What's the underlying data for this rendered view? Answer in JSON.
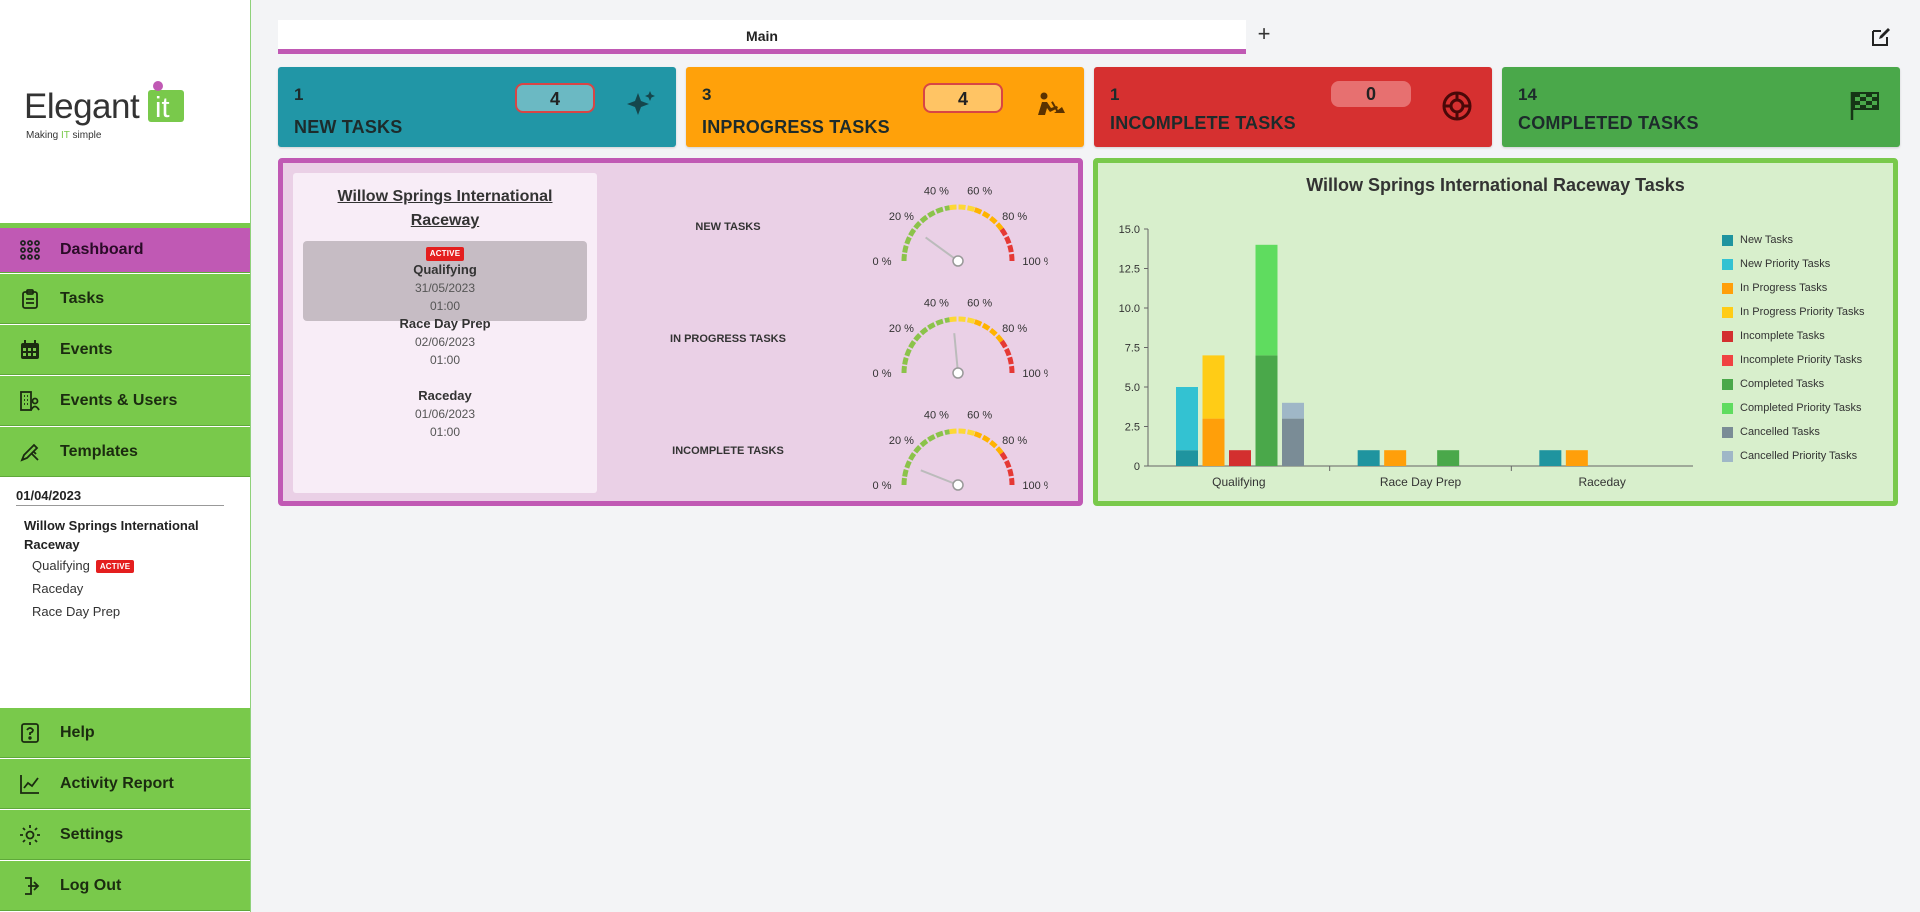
{
  "brand": {
    "logo_word": "Elegant",
    "logo_it": "it",
    "tagline_pre": "Making ",
    "tagline_it": "IT",
    "tagline_post": " simple"
  },
  "sidebar": {
    "nav_top": [
      {
        "label": "Dashboard",
        "icon": "grid-icon",
        "active": true
      },
      {
        "label": "Tasks",
        "icon": "clipboard-icon"
      },
      {
        "label": "Events",
        "icon": "calendar-icon"
      },
      {
        "label": "Events & Users",
        "icon": "building-users-icon"
      },
      {
        "label": "Templates",
        "icon": "pencil-ruler-icon"
      }
    ],
    "nav_bottom": [
      {
        "label": "Help",
        "icon": "question-icon"
      },
      {
        "label": "Activity Report",
        "icon": "chart-line-icon"
      },
      {
        "label": "Settings",
        "icon": "gear-icon"
      },
      {
        "label": "Log Out",
        "icon": "logout-icon"
      }
    ],
    "event_tree": {
      "date": "01/04/2023",
      "event_name": "Willow Springs International Raceway",
      "sub_events": [
        {
          "label": "Qualifying",
          "badge": "ACTIVE"
        },
        {
          "label": "Raceday"
        },
        {
          "label": "Race Day Prep"
        }
      ]
    }
  },
  "tabs": {
    "main_label": "Main",
    "add_label": "+"
  },
  "stats": [
    {
      "count": "1",
      "label": "NEW TASKS",
      "pill": "4",
      "color": "#2196a6",
      "pill_bg": "#6bb9c3",
      "icon": "sparkles-icon"
    },
    {
      "count": "3",
      "label": "INPROGRESS TASKS",
      "pill": "4",
      "color": "#ffa10a",
      "pill_bg": "#ffc464",
      "icon": "worker-digging-icon"
    },
    {
      "count": "1",
      "label": "INCOMPLETE TASKS",
      "pill": "0",
      "color": "#d63030",
      "pill_bg": "#e77070",
      "icon": "tire-icon"
    },
    {
      "count": "14",
      "label": "COMPLETED TASKS",
      "pill": "",
      "color": "#4aa84a",
      "pill_bg": "",
      "icon": "checkered-flag-icon"
    }
  ],
  "event_panel": {
    "title": "Willow Springs International Raceway",
    "events": [
      {
        "badge": "ACTIVE",
        "name": "Qualifying",
        "date": "31/05/2023",
        "time": "01:00",
        "selected": true
      },
      {
        "name": "Race Day Prep",
        "date": "02/06/2023",
        "time": "01:00"
      },
      {
        "name": "Raceday",
        "date": "01/06/2023",
        "time": "01:00"
      }
    ],
    "gauges": [
      {
        "label": "NEW TASKS",
        "value_pct": 20
      },
      {
        "label": "IN PROGRESS TASKS",
        "value_pct": 47
      },
      {
        "label": "INCOMPLETE TASKS",
        "value_pct": 12
      }
    ],
    "gauge_ticks": [
      "0 %",
      "20 %",
      "40 %",
      "60 %",
      "80 %",
      "100 %"
    ]
  },
  "chart_data": {
    "type": "bar",
    "title": "Willow Springs International Raceway Tasks",
    "categories": [
      "Qualifying",
      "Race Day Prep",
      "Raceday"
    ],
    "ylim": [
      0,
      15
    ],
    "yticks": [
      "0",
      "2.5",
      "5.0",
      "7.5",
      "10.0",
      "12.5",
      "15.0"
    ],
    "stacks": [
      {
        "base": "New Tasks",
        "top": "New Priority Tasks",
        "base_color": "#1f949f",
        "top_color": "#33c2d2",
        "values": [
          [
            1,
            4
          ],
          [
            1,
            0
          ],
          [
            1,
            0
          ]
        ]
      },
      {
        "base": "In Progress Tasks",
        "top": "In Progress Priority Tasks",
        "base_color": "#ff9f0a",
        "top_color": "#ffcc16",
        "values": [
          [
            3,
            4
          ],
          [
            1,
            0
          ],
          [
            1,
            0
          ]
        ]
      },
      {
        "base": "Incomplete Tasks",
        "top": "Incomplete Priority Tasks",
        "base_color": "#d32f2f",
        "top_color": "#f04242",
        "values": [
          [
            1,
            0
          ],
          [
            0,
            0
          ],
          [
            0,
            0
          ]
        ]
      },
      {
        "base": "Completed Tasks",
        "top": "Completed Priority Tasks",
        "base_color": "#4aa84a",
        "top_color": "#5fdc5f",
        "values": [
          [
            7,
            7
          ],
          [
            1,
            0
          ],
          [
            0,
            0
          ]
        ]
      },
      {
        "base": "Cancelled Tasks",
        "top": "Cancelled Priority Tasks",
        "base_color": "#7a8c96",
        "top_color": "#9fb7c7",
        "values": [
          [
            3,
            1
          ],
          [
            0,
            0
          ],
          [
            0,
            0
          ]
        ]
      }
    ],
    "legend": [
      {
        "name": "New Tasks",
        "color": "#1f949f"
      },
      {
        "name": "New Priority Tasks",
        "color": "#33c2d2"
      },
      {
        "name": "In Progress Tasks",
        "color": "#ff9f0a"
      },
      {
        "name": "In Progress Priority Tasks",
        "color": "#ffcc16"
      },
      {
        "name": "Incomplete Tasks",
        "color": "#d32f2f"
      },
      {
        "name": "Incomplete Priority Tasks",
        "color": "#f04242"
      },
      {
        "name": "Completed Tasks",
        "color": "#4aa84a"
      },
      {
        "name": "Completed Priority Tasks",
        "color": "#5fdc5f"
      },
      {
        "name": "Cancelled Tasks",
        "color": "#7a8c96"
      },
      {
        "name": "Cancelled Priority Tasks",
        "color": "#9fb7c7"
      }
    ],
    "legend_position": "right"
  }
}
